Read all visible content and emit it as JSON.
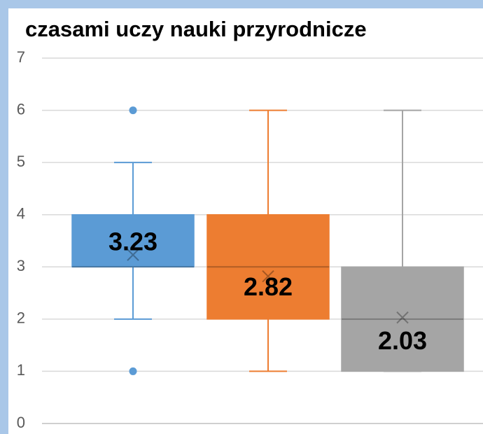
{
  "chart_data": {
    "type": "box",
    "title": "czasami uczy nauki przyrodnicze",
    "ylim": [
      0,
      7
    ],
    "yticks": [
      0,
      1,
      2,
      3,
      4,
      5,
      6,
      7
    ],
    "grid": true,
    "series": [
      {
        "color": "#5b9bd5",
        "min": 2,
        "q1": 3,
        "median": 3,
        "q3": 4,
        "max": 5,
        "mean": 3.23,
        "outliers": [
          1,
          6
        ]
      },
      {
        "color": "#ed7d31",
        "min": 1,
        "q1": 2,
        "median": 3,
        "q3": 4,
        "max": 6,
        "mean": 2.82,
        "outliers": []
      },
      {
        "color": "#a5a5a5",
        "min": 1,
        "q1": 1,
        "median": 2,
        "q3": 3,
        "max": 6,
        "mean": 2.03,
        "outliers": []
      }
    ]
  }
}
